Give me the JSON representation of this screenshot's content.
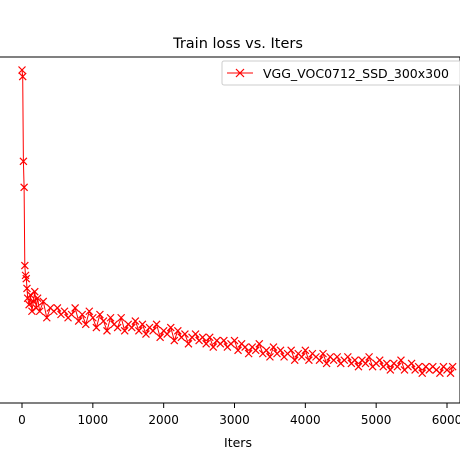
{
  "chart_data": {
    "type": "line",
    "title": "Train loss  vs. Iters",
    "xlabel": "Iters",
    "ylabel": "",
    "xlim": [
      -200,
      6100
    ],
    "ylim": [
      0.0,
      1.05
    ],
    "x_ticks": [
      0,
      1000,
      2000,
      3000,
      4000,
      5000,
      6000
    ],
    "x_tick_labels": [
      "0",
      "1000",
      "2000",
      "3000",
      "4000",
      "5000",
      "6000"
    ],
    "y_ticks_shown": false,
    "grid": false,
    "legend_position": "top-right",
    "marker": "x",
    "series": [
      {
        "name": "VGG_VOC0712_SSD_300x300",
        "color": "#ff0000",
        "x": [
          0,
          10,
          20,
          30,
          40,
          50,
          60,
          70,
          80,
          100,
          120,
          140,
          160,
          180,
          200,
          220,
          250,
          300,
          350,
          400,
          450,
          500,
          550,
          600,
          650,
          700,
          750,
          800,
          850,
          900,
          950,
          1000,
          1050,
          1100,
          1150,
          1200,
          1250,
          1300,
          1350,
          1400,
          1450,
          1500,
          1550,
          1600,
          1650,
          1700,
          1750,
          1800,
          1850,
          1900,
          1950,
          2000,
          2050,
          2100,
          2150,
          2200,
          2250,
          2300,
          2350,
          2400,
          2450,
          2500,
          2550,
          2600,
          2650,
          2700,
          2750,
          2800,
          2850,
          2900,
          2950,
          3000,
          3050,
          3100,
          3150,
          3200,
          3250,
          3300,
          3350,
          3400,
          3450,
          3500,
          3550,
          3600,
          3650,
          3700,
          3750,
          3800,
          3850,
          3900,
          3950,
          4000,
          4050,
          4100,
          4150,
          4200,
          4250,
          4300,
          4350,
          4400,
          4450,
          4500,
          4550,
          4600,
          4650,
          4700,
          4750,
          4800,
          4850,
          4900,
          4950,
          5000,
          5050,
          5100,
          5150,
          5200,
          5250,
          5300,
          5350,
          5400,
          5450,
          5500,
          5550,
          5600,
          5650,
          5700,
          5750,
          5800,
          5850,
          5900,
          5950,
          6000,
          6050,
          6080
        ],
        "y": [
          1.0,
          0.98,
          0.72,
          0.64,
          0.4,
          0.37,
          0.36,
          0.33,
          0.3,
          0.28,
          0.31,
          0.26,
          0.29,
          0.32,
          0.27,
          0.3,
          0.26,
          0.29,
          0.24,
          0.27,
          0.26,
          0.27,
          0.25,
          0.26,
          0.24,
          0.25,
          0.27,
          0.23,
          0.25,
          0.22,
          0.26,
          0.24,
          0.21,
          0.25,
          0.23,
          0.2,
          0.24,
          0.22,
          0.21,
          0.24,
          0.2,
          0.22,
          0.21,
          0.23,
          0.2,
          0.22,
          0.19,
          0.21,
          0.2,
          0.22,
          0.18,
          0.2,
          0.19,
          0.21,
          0.17,
          0.2,
          0.18,
          0.19,
          0.16,
          0.18,
          0.19,
          0.17,
          0.18,
          0.16,
          0.18,
          0.15,
          0.17,
          0.16,
          0.17,
          0.15,
          0.16,
          0.17,
          0.14,
          0.16,
          0.15,
          0.13,
          0.15,
          0.14,
          0.16,
          0.13,
          0.14,
          0.12,
          0.15,
          0.13,
          0.14,
          0.12,
          0.13,
          0.14,
          0.11,
          0.13,
          0.12,
          0.14,
          0.11,
          0.13,
          0.12,
          0.11,
          0.13,
          0.1,
          0.12,
          0.11,
          0.12,
          0.1,
          0.11,
          0.12,
          0.1,
          0.11,
          0.09,
          0.11,
          0.1,
          0.12,
          0.09,
          0.1,
          0.11,
          0.09,
          0.1,
          0.08,
          0.1,
          0.09,
          0.11,
          0.08,
          0.09,
          0.1,
          0.08,
          0.09,
          0.07,
          0.09,
          0.08,
          0.09,
          0.08,
          0.07,
          0.09,
          0.08,
          0.07,
          0.09
        ]
      }
    ]
  }
}
